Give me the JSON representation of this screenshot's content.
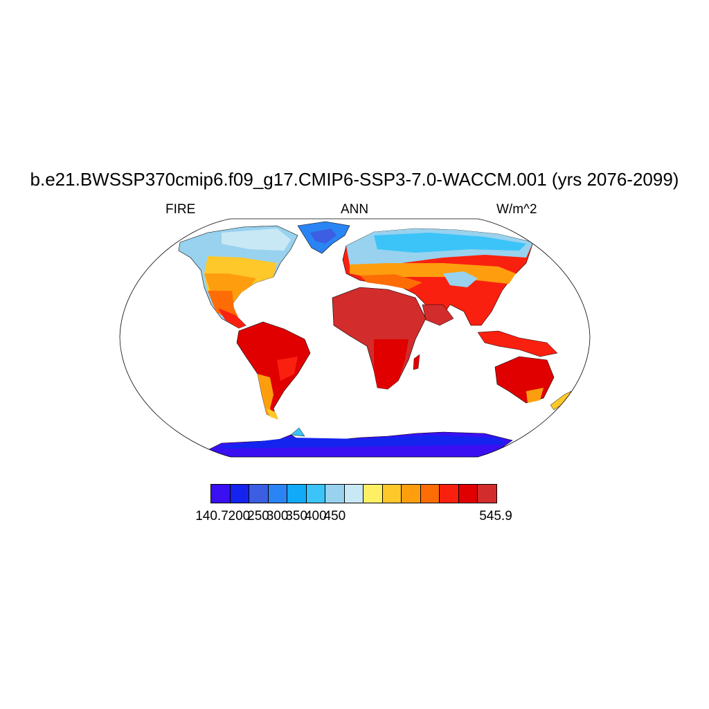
{
  "title": "b.e21.BWSSP370cmip6.f09_g17.CMIP6-SSP3-7.0-WACCM.001 (yrs 2076-2099)",
  "left_string": "FIRE",
  "center_string": "ANN",
  "right_string": "W/m^2",
  "colorbar": {
    "colors": [
      "#3a10f2",
      "#1424ee",
      "#3c5ee2",
      "#2a84f4",
      "#10aaf8",
      "#3cc4f8",
      "#98d2ee",
      "#c8e8f6",
      "#fef062",
      "#fec82a",
      "#fe9e0e",
      "#fe6c06",
      "#fa2010",
      "#e00000",
      "#d22c2c"
    ],
    "labels": [
      "140.7",
      "200",
      "250",
      "300",
      "350",
      "400",
      "450",
      "545.9"
    ],
    "label_box_index": [
      0,
      1,
      2,
      3,
      4,
      5,
      6,
      8
    ]
  },
  "map": {
    "projection": "Robinson",
    "field": "FIRE",
    "range": [
      140.7,
      545.9
    ],
    "units": "W/m^2",
    "coastlines": true
  }
}
